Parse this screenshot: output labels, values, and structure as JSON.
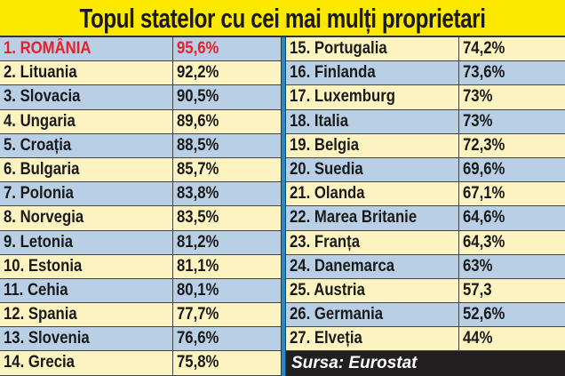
{
  "title": "Topul statelor cu cei mai mulți proprietari",
  "colors": {
    "title_bg": "#fde800",
    "row_blue": "#b8cfe6",
    "row_cream": "#fdf3c0",
    "highlight": "#e8202a",
    "separator": "#1a8fd0",
    "source_bg": "#231f20"
  },
  "chart_data": {
    "type": "table",
    "title": "Topul statelor cu cei mai mulți proprietari",
    "rows": [
      {
        "name": "1. ROMÂNIA",
        "value": "95,6%",
        "highlight": true
      },
      {
        "name": "2. Lituania",
        "value": "92,2%"
      },
      {
        "name": "3. Slovacia",
        "value": "90,5%"
      },
      {
        "name": "4. Ungaria",
        "value": "89,6%"
      },
      {
        "name": "5. Croația",
        "value": "88,5%"
      },
      {
        "name": "6. Bulgaria",
        "value": "85,7%"
      },
      {
        "name": "7. Polonia",
        "value": "83,8%"
      },
      {
        "name": "8. Norvegia",
        "value": "83,5%"
      },
      {
        "name": "9. Letonia",
        "value": "81,2%"
      },
      {
        "name": "10. Estonia",
        "value": "81,1%"
      },
      {
        "name": "11. Cehia",
        "value": "80,1%"
      },
      {
        "name": "12. Spania",
        "value": "77,7%"
      },
      {
        "name": "13. Slovenia",
        "value": "76,6%"
      },
      {
        "name": "14. Grecia",
        "value": "75,8%"
      },
      {
        "name": "15. Portugalia",
        "value": "74,2%"
      },
      {
        "name": "16. Finlanda",
        "value": "73,6%"
      },
      {
        "name": "17. Luxemburg",
        "value": "73%"
      },
      {
        "name": "18. Italia",
        "value": "73%"
      },
      {
        "name": "19. Belgia",
        "value": "72,3%"
      },
      {
        "name": "20. Suedia",
        "value": "69,6%"
      },
      {
        "name": "21. Olanda",
        "value": "67,1%"
      },
      {
        "name": "22. Marea Britanie",
        "value": "64,6%"
      },
      {
        "name": "23. Franța",
        "value": "64,3%"
      },
      {
        "name": "24. Danemarca",
        "value": "63%"
      },
      {
        "name": "25. Austria",
        "value": "57,3"
      },
      {
        "name": "26. Germania",
        "value": "52,6%"
      },
      {
        "name": "27. Elveția",
        "value": "44%"
      }
    ],
    "source": "Sursa: Eurostat"
  }
}
